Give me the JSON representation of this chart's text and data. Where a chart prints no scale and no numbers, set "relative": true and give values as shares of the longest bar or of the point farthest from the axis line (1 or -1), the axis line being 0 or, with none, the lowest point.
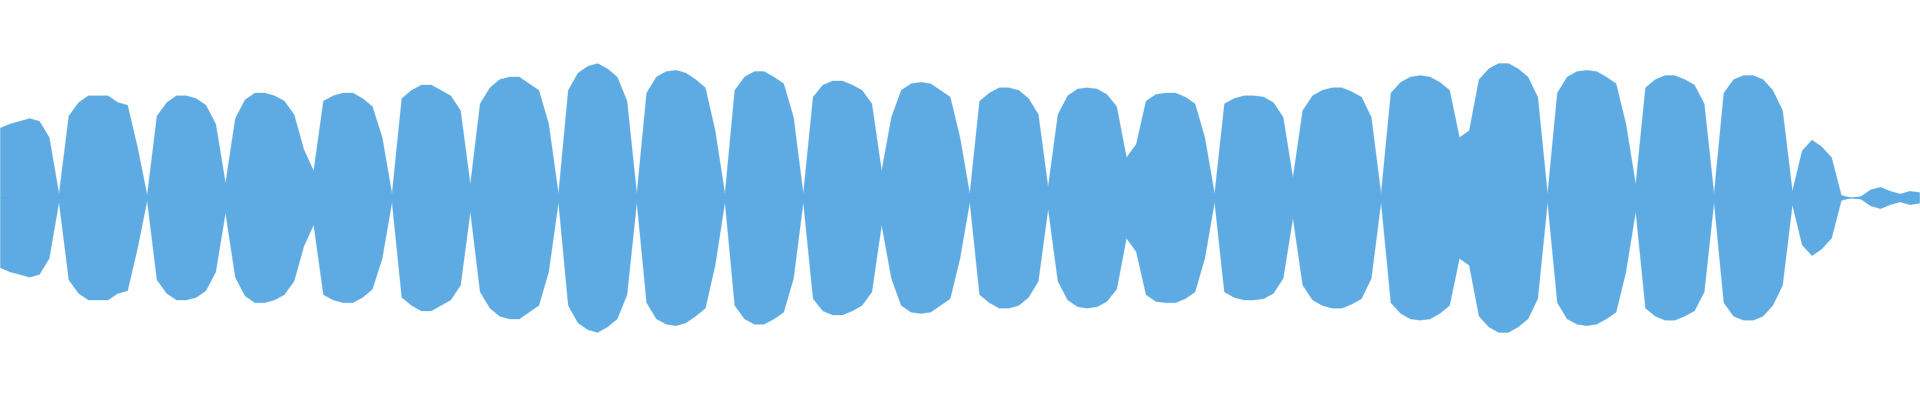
{
  "chart_data": {
    "type": "area",
    "relative": true,
    "ref_lines": [
      {
        "axis": "y",
        "value": 0,
        "color": "#5dabe2"
      }
    ],
    "categories": [
      null,
      null,
      null,
      null,
      null,
      null,
      null,
      null,
      null,
      null,
      null,
      null,
      null,
      null,
      null,
      null,
      null,
      null,
      null,
      null,
      null,
      null,
      null,
      null,
      null,
      null,
      null,
      null,
      null,
      null,
      null,
      null,
      null,
      null,
      null,
      null,
      null,
      null,
      null,
      null,
      null,
      null,
      null,
      null,
      null,
      null,
      null,
      null,
      null,
      null,
      null,
      null,
      null,
      null,
      null,
      null,
      null,
      null,
      null,
      null,
      null,
      null,
      null,
      null,
      null,
      null,
      null,
      null,
      null,
      null,
      null,
      null,
      null,
      null,
      null,
      null,
      null,
      null,
      null,
      null,
      null,
      null,
      null,
      null,
      null,
      null,
      null,
      null,
      null,
      null,
      null,
      null,
      null,
      null,
      null,
      null,
      null,
      null,
      null,
      null,
      null,
      null,
      null,
      null,
      null,
      null,
      null,
      null,
      null,
      null,
      null,
      null,
      null,
      null,
      null,
      null,
      null,
      null,
      null,
      null,
      null,
      null,
      null,
      null,
      null,
      null,
      null,
      null,
      null,
      null,
      null,
      null,
      null,
      null,
      null,
      null,
      null,
      null,
      null,
      null,
      null,
      null,
      null,
      null,
      null,
      null,
      null,
      null,
      null,
      null,
      null,
      null,
      null,
      null,
      null,
      null,
      null,
      null,
      null,
      null,
      null,
      null,
      null,
      null,
      null,
      null,
      null,
      null,
      null,
      null,
      null,
      null,
      null,
      null,
      null,
      null,
      null,
      null,
      null,
      null,
      null,
      null,
      null,
      null,
      null,
      null,
      null,
      null,
      null,
      null,
      null,
      null,
      null,
      null,
      null,
      null,
      null
    ],
    "series": [
      {
        "color": "#5dabe2",
        "values": [
          0.52,
          0.55,
          0.57,
          0.59,
          0.57,
          0.45,
          0.03,
          0.61,
          0.71,
          0.76,
          0.76,
          0.76,
          0.71,
          0.69,
          0.38,
          0.02,
          0.61,
          0.71,
          0.76,
          0.76,
          0.74,
          0.69,
          0.55,
          0.11,
          0.59,
          0.73,
          0.78,
          0.78,
          0.76,
          0.72,
          0.62,
          0.36,
          0.2,
          0.72,
          0.76,
          0.78,
          0.78,
          0.74,
          0.68,
          0.45,
          0.03,
          0.74,
          0.8,
          0.84,
          0.84,
          0.8,
          0.76,
          0.65,
          0.1,
          0.7,
          0.82,
          0.88,
          0.9,
          0.9,
          0.85,
          0.8,
          0.55,
          0.03,
          0.8,
          0.93,
          0.98,
          1.0,
          0.96,
          0.9,
          0.72,
          0.03,
          0.78,
          0.9,
          0.94,
          0.95,
          0.93,
          0.88,
          0.82,
          0.5,
          0.03,
          0.8,
          0.9,
          0.94,
          0.94,
          0.9,
          0.85,
          0.6,
          0.03,
          0.75,
          0.84,
          0.87,
          0.87,
          0.84,
          0.8,
          0.7,
          0.2,
          0.6,
          0.8,
          0.85,
          0.86,
          0.85,
          0.8,
          0.75,
          0.45,
          0.03,
          0.72,
          0.78,
          0.82,
          0.82,
          0.8,
          0.74,
          0.62,
          0.08,
          0.62,
          0.76,
          0.81,
          0.82,
          0.81,
          0.77,
          0.68,
          0.3,
          0.4,
          0.72,
          0.77,
          0.78,
          0.78,
          0.75,
          0.7,
          0.45,
          0.03,
          0.7,
          0.74,
          0.76,
          0.76,
          0.75,
          0.71,
          0.6,
          0.15,
          0.65,
          0.76,
          0.8,
          0.82,
          0.82,
          0.79,
          0.75,
          0.6,
          0.03,
          0.78,
          0.86,
          0.9,
          0.91,
          0.9,
          0.86,
          0.8,
          0.45,
          0.5,
          0.88,
          0.96,
          1.0,
          1.0,
          0.96,
          0.9,
          0.75,
          0.03,
          0.78,
          0.9,
          0.94,
          0.95,
          0.94,
          0.9,
          0.85,
          0.55,
          0.1,
          0.82,
          0.88,
          0.91,
          0.91,
          0.88,
          0.84,
          0.7,
          0.03,
          0.78,
          0.88,
          0.91,
          0.91,
          0.88,
          0.8,
          0.65,
          0.05,
          0.35,
          0.43,
          0.38,
          0.3,
          0.02,
          0,
          0.01,
          0.06,
          0.08,
          0.05,
          0.03,
          0.05,
          0.04
        ]
      },
      {
        "color": "#5dabe2",
        "values": [
          -0.52,
          -0.55,
          -0.57,
          -0.59,
          -0.57,
          -0.45,
          -0.03,
          -0.61,
          -0.71,
          -0.76,
          -0.76,
          -0.76,
          -0.71,
          -0.69,
          -0.38,
          -0.02,
          -0.61,
          -0.71,
          -0.76,
          -0.76,
          -0.74,
          -0.69,
          -0.55,
          -0.11,
          -0.59,
          -0.73,
          -0.78,
          -0.78,
          -0.76,
          -0.72,
          -0.62,
          -0.36,
          -0.2,
          -0.72,
          -0.76,
          -0.78,
          -0.78,
          -0.74,
          -0.68,
          -0.45,
          -0.03,
          -0.74,
          -0.8,
          -0.84,
          -0.84,
          -0.8,
          -0.76,
          -0.65,
          -0.1,
          -0.7,
          -0.82,
          -0.88,
          -0.9,
          -0.9,
          -0.85,
          -0.8,
          -0.55,
          -0.03,
          -0.8,
          -0.93,
          -0.98,
          -1.0,
          -0.96,
          -0.9,
          -0.72,
          -0.03,
          -0.78,
          -0.9,
          -0.94,
          -0.95,
          -0.93,
          -0.88,
          -0.82,
          -0.5,
          -0.03,
          -0.8,
          -0.9,
          -0.94,
          -0.94,
          -0.9,
          -0.85,
          -0.6,
          -0.03,
          -0.75,
          -0.84,
          -0.87,
          -0.87,
          -0.84,
          -0.8,
          -0.7,
          -0.2,
          -0.6,
          -0.8,
          -0.85,
          -0.86,
          -0.85,
          -0.8,
          -0.75,
          -0.45,
          -0.03,
          -0.72,
          -0.78,
          -0.82,
          -0.82,
          -0.8,
          -0.74,
          -0.62,
          -0.08,
          -0.62,
          -0.76,
          -0.81,
          -0.82,
          -0.81,
          -0.77,
          -0.68,
          -0.3,
          -0.4,
          -0.72,
          -0.77,
          -0.78,
          -0.78,
          -0.75,
          -0.7,
          -0.45,
          -0.03,
          -0.7,
          -0.74,
          -0.76,
          -0.76,
          -0.75,
          -0.71,
          -0.6,
          -0.15,
          -0.65,
          -0.76,
          -0.8,
          -0.82,
          -0.82,
          -0.79,
          -0.75,
          -0.6,
          -0.03,
          -0.78,
          -0.86,
          -0.9,
          -0.91,
          -0.9,
          -0.86,
          -0.8,
          -0.45,
          -0.5,
          -0.88,
          -0.96,
          -1.0,
          -1.0,
          -0.96,
          -0.9,
          -0.75,
          -0.03,
          -0.78,
          -0.9,
          -0.94,
          -0.95,
          -0.94,
          -0.9,
          -0.85,
          -0.55,
          -0.1,
          -0.82,
          -0.88,
          -0.91,
          -0.91,
          -0.88,
          -0.84,
          -0.7,
          -0.03,
          -0.78,
          -0.88,
          -0.91,
          -0.91,
          -0.88,
          -0.8,
          -0.65,
          -0.05,
          -0.35,
          -0.43,
          -0.38,
          -0.3,
          -0.02,
          0,
          -0.01,
          -0.06,
          -0.08,
          -0.05,
          -0.03,
          -0.05,
          -0.04
        ]
      }
    ]
  }
}
